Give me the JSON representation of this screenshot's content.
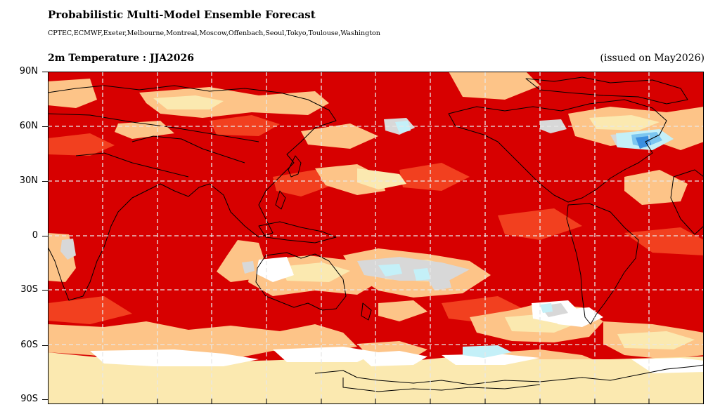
{
  "header": {
    "title": "Probabilistic Multi-Model Ensemble Forecast",
    "centers": "CPTEC,ECMWF,Exeter,Melbourne,Montreal,Moscow,Offenbach,Seoul,Tokyo,Toulouse,Washington",
    "variable_title": "2m Temperature : JJA2026",
    "issued": "(issued on May2026)"
  },
  "map": {
    "projection": "PlateCarree, central longitude 180",
    "gridlines": "dashed, white",
    "lat_labels": [
      "90N",
      "60N",
      "30N",
      "0",
      "30S",
      "60S",
      "90S"
    ],
    "colors": {
      "strong_above": "#d70000",
      "moderate_above": "#f2401f",
      "weak_above": "#fdc488",
      "slight_above": "#fbe9b0",
      "neutral": "#ffffff",
      "uncertain": "#d8d8d8",
      "weak_below": "#c4f0f8",
      "moderate_below": "#7cc6f0",
      "strong_below": "#3a8fe0",
      "coastline": "#000000"
    }
  }
}
